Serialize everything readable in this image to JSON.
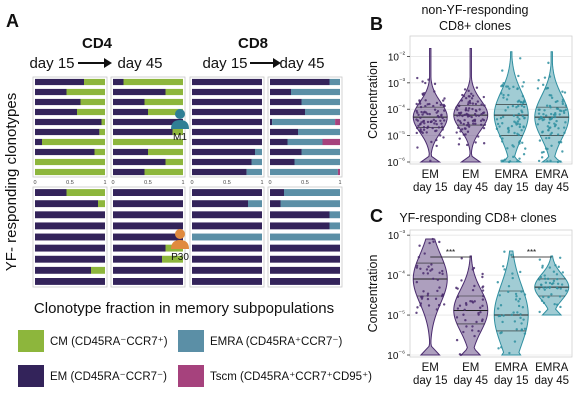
{
  "figure": {
    "panelA": {
      "letter": "A",
      "groups": [
        "CD4",
        "CD8"
      ],
      "time_start": "day 15",
      "time_end": "day 45",
      "donors": [
        "M1",
        "P30"
      ],
      "ylabel": "YF- responding clonotypes",
      "xlabel": "Clonotype fraction in memory subpopulations",
      "ticks": [
        "0",
        "0.5",
        "1"
      ],
      "legend": [
        {
          "label": "CM (CD45RA⁻CCR7⁺)",
          "color": "#8db63c"
        },
        {
          "label": "EMRA (CD45RA⁺CCR7⁻)",
          "color": "#5b8fa6"
        },
        {
          "label": "EM (CD45RA⁻CCR7⁻)",
          "color": "#33235a"
        },
        {
          "label": "Tscm (CD45RA⁺CCR7⁺CD95⁺)",
          "color": "#a6427d"
        }
      ]
    },
    "panelB": {
      "letter": "B",
      "title_line1": "non-YF-responding",
      "title_line2": "CD8+ clones"
    },
    "panelC": {
      "letter": "C",
      "title_line1": "YF-responding CD8+ clones",
      "significance": [
        "***",
        "***"
      ]
    }
  },
  "chart_data": [
    {
      "type": "bar",
      "id": "A-CD4-M1-day15",
      "stacked": true,
      "orientation": "horizontal",
      "series_names": [
        "EM",
        "CM",
        "EMRA",
        "Tscm"
      ],
      "rows": [
        [
          0.7,
          0.3,
          0,
          0
        ],
        [
          0.45,
          0.55,
          0,
          0
        ],
        [
          0.65,
          0.35,
          0,
          0
        ],
        [
          0.6,
          0.4,
          0,
          0
        ],
        [
          0.95,
          0.05,
          0,
          0
        ],
        [
          0.92,
          0.08,
          0,
          0
        ],
        [
          0.1,
          0.9,
          0,
          0
        ],
        [
          0.85,
          0.15,
          0,
          0
        ],
        [
          0,
          1,
          0,
          0
        ],
        [
          0,
          1,
          0,
          0
        ]
      ]
    },
    {
      "type": "bar",
      "id": "A-CD4-M1-day45",
      "stacked": true,
      "orientation": "horizontal",
      "series_names": [
        "EM",
        "CM",
        "EMRA",
        "Tscm"
      ],
      "rows": [
        [
          0.15,
          0.85,
          0,
          0
        ],
        [
          0.75,
          0.25,
          0,
          0
        ],
        [
          0.45,
          0.55,
          0,
          0
        ],
        [
          0.5,
          0.5,
          0,
          0
        ],
        [
          1,
          0,
          0,
          0
        ],
        [
          0.85,
          0.15,
          0,
          0
        ],
        [
          0,
          1,
          0,
          0
        ],
        [
          0.5,
          0.5,
          0,
          0
        ],
        [
          0.75,
          0.25,
          0,
          0
        ],
        [
          0.45,
          0.55,
          0,
          0
        ]
      ]
    },
    {
      "type": "bar",
      "id": "A-CD8-M1-day15",
      "stacked": true,
      "orientation": "horizontal",
      "series_names": [
        "EM",
        "CM",
        "EMRA",
        "Tscm"
      ],
      "rows": [
        [
          1,
          0,
          0,
          0
        ],
        [
          1,
          0,
          0,
          0
        ],
        [
          1,
          0,
          0,
          0
        ],
        [
          1,
          0,
          0,
          0
        ],
        [
          1,
          0,
          0,
          0
        ],
        [
          1,
          0,
          0,
          0
        ],
        [
          1,
          0,
          0,
          0
        ],
        [
          0.9,
          0,
          0.1,
          0
        ],
        [
          0.85,
          0,
          0.15,
          0
        ],
        [
          0.78,
          0,
          0.22,
          0
        ]
      ]
    },
    {
      "type": "bar",
      "id": "A-CD8-M1-day45",
      "stacked": true,
      "orientation": "horizontal",
      "series_names": [
        "EM",
        "CM",
        "EMRA",
        "Tscm"
      ],
      "rows": [
        [
          0.85,
          0,
          0.15,
          0
        ],
        [
          0.3,
          0,
          0.7,
          0
        ],
        [
          0.45,
          0,
          0.55,
          0
        ],
        [
          0.5,
          0,
          0.5,
          0
        ],
        [
          0.03,
          0,
          0.9,
          0.07
        ],
        [
          0.4,
          0,
          0.6,
          0
        ],
        [
          0.25,
          0,
          0.5,
          0.25
        ],
        [
          0.45,
          0,
          0.55,
          0
        ],
        [
          0.35,
          0,
          0.65,
          0
        ],
        [
          0.0,
          0,
          0.97,
          0.03
        ]
      ]
    },
    {
      "type": "bar",
      "id": "A-CD4-P30-day15",
      "stacked": true,
      "orientation": "horizontal",
      "series_names": [
        "EM",
        "CM",
        "EMRA",
        "Tscm"
      ],
      "rows": [
        [
          0.45,
          0.55,
          0,
          0
        ],
        [
          0.9,
          0.1,
          0,
          0
        ],
        [
          1,
          0,
          0,
          0
        ],
        [
          1,
          0,
          0,
          0
        ],
        [
          1,
          0,
          0,
          0
        ],
        [
          1,
          0,
          0,
          0
        ],
        [
          1,
          0,
          0,
          0
        ],
        [
          0.8,
          0.2,
          0,
          0
        ],
        [
          1,
          0,
          0,
          0
        ]
      ]
    },
    {
      "type": "bar",
      "id": "A-CD4-P30-day45",
      "stacked": true,
      "orientation": "horizontal",
      "series_names": [
        "EM",
        "CM",
        "EMRA",
        "Tscm"
      ],
      "rows": [
        [
          1,
          0,
          0,
          0
        ],
        [
          1,
          0,
          0,
          0
        ],
        [
          1,
          0,
          0,
          0
        ],
        [
          1,
          0,
          0,
          0
        ],
        [
          1,
          0,
          0,
          0
        ],
        [
          0.75,
          0.25,
          0,
          0
        ],
        [
          0.7,
          0.3,
          0,
          0
        ],
        [
          1,
          0,
          0,
          0
        ],
        [
          1,
          0,
          0,
          0
        ]
      ]
    },
    {
      "type": "bar",
      "id": "A-CD8-P30-day15",
      "stacked": true,
      "orientation": "horizontal",
      "series_names": [
        "EM",
        "CM",
        "EMRA",
        "Tscm"
      ],
      "rows": [
        [
          1,
          0,
          0,
          0
        ],
        [
          0.8,
          0,
          0.2,
          0
        ],
        [
          1,
          0,
          0,
          0
        ],
        [
          1,
          0,
          0,
          0
        ],
        [
          0,
          0,
          1,
          0
        ],
        [
          1,
          0,
          0,
          0
        ],
        [
          1,
          0,
          0,
          0
        ],
        [
          1,
          0,
          0,
          0
        ],
        [
          1,
          0,
          0,
          0
        ]
      ]
    },
    {
      "type": "bar",
      "id": "A-CD8-P30-day45",
      "stacked": true,
      "orientation": "horizontal",
      "series_names": [
        "EM",
        "CM",
        "EMRA",
        "Tscm"
      ],
      "rows": [
        [
          0.2,
          0,
          0.8,
          0
        ],
        [
          0.15,
          0,
          0.85,
          0
        ],
        [
          0.85,
          0,
          0.15,
          0
        ],
        [
          0.85,
          0,
          0.15,
          0
        ],
        [
          0,
          0,
          1,
          0
        ],
        [
          1,
          0,
          0,
          0
        ],
        [
          1,
          0,
          0,
          0
        ],
        [
          1,
          0,
          0,
          0
        ],
        [
          1,
          0,
          0,
          0
        ]
      ]
    },
    {
      "type": "scatter",
      "id": "B",
      "variant": "violin",
      "title": "non-YF-responding CD8+ clones",
      "ylabel": "Concentration",
      "yscale": "log",
      "ylim": [
        1e-06,
        0.05
      ],
      "yticks": [
        "10⁻⁶",
        "10⁻⁵",
        "10⁻⁴",
        "10⁻³",
        "10⁻²"
      ],
      "categories": [
        [
          "EM",
          "day 15"
        ],
        [
          "EM",
          "day 45"
        ],
        [
          "EMRA",
          "day 15"
        ],
        [
          "EMRA",
          "day 45"
        ]
      ],
      "colors": [
        "#4a2b6e",
        "#4a2b6e",
        "#2f8fa0",
        "#2f8fa0"
      ],
      "medians": [
        5e-05,
        6e-05,
        6e-05,
        5e-05
      ],
      "iqr": [
        [
          2e-05,
          0.00012
        ],
        [
          2.5e-05,
          0.00014
        ],
        [
          1e-05,
          0.00015
        ],
        [
          1e-05,
          0.00012
        ]
      ],
      "range": [
        [
          1e-06,
          0.02
        ],
        [
          1e-06,
          0.02
        ],
        [
          1e-06,
          0.015
        ],
        [
          1e-06,
          0.015
        ]
      ]
    },
    {
      "type": "scatter",
      "id": "C",
      "variant": "violin",
      "title": "YF-responding CD8+ clones",
      "ylabel": "Concentration",
      "yscale": "log",
      "ylim": [
        1e-06,
        0.0012
      ],
      "yticks": [
        "10⁻⁶",
        "10⁻⁵",
        "10⁻⁴",
        "10⁻³"
      ],
      "categories": [
        [
          "EM",
          "day 15"
        ],
        [
          "EM",
          "day 45"
        ],
        [
          "EMRA",
          "day 15"
        ],
        [
          "EMRA",
          "day 45"
        ]
      ],
      "colors": [
        "#4a2b6e",
        "#4a2b6e",
        "#2f8fa0",
        "#2f8fa0"
      ],
      "medians": [
        8e-05,
        1.3e-05,
        1e-05,
        5e-05
      ],
      "iqr": [
        [
          3e-05,
          0.0002
        ],
        [
          6e-06,
          3e-05
        ],
        [
          4e-06,
          4e-05
        ],
        [
          3e-05,
          8e-05
        ]
      ],
      "range": [
        [
          1e-06,
          0.0008
        ],
        [
          1e-06,
          0.0003
        ],
        [
          1e-06,
          0.0004
        ],
        [
          1e-05,
          0.0003
        ]
      ]
    }
  ]
}
